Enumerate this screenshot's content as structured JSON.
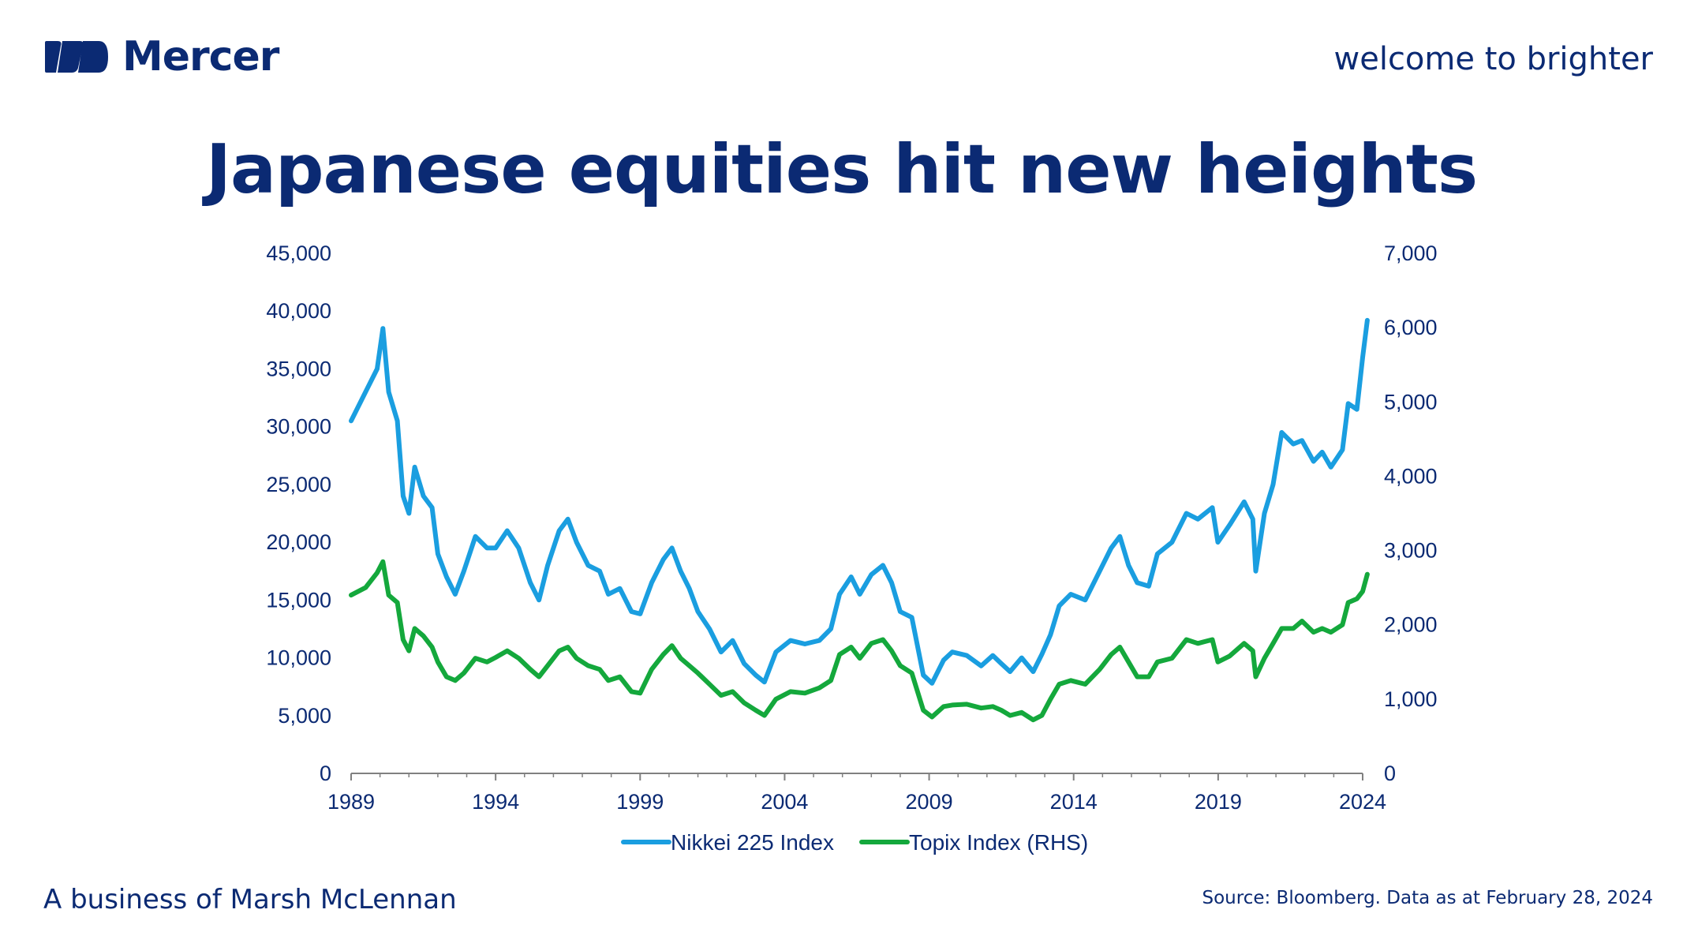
{
  "header": {
    "brand": "Mercer",
    "tagline": "welcome to brighter",
    "logo_icon": "mercer-logo-icon"
  },
  "title": "Japanese equities hit new heights",
  "footer": {
    "left": "A business of Marsh McLennan",
    "right": "Source: Bloomberg. Data as at February 28, 2024"
  },
  "colors": {
    "brand": "#0b2a73",
    "nikkei": "#1a9ee0",
    "topix": "#14a83c",
    "axis": "#808080"
  },
  "chart_data": {
    "type": "line",
    "title": "",
    "xlabel": "",
    "ylabel": "",
    "xlim": [
      1989,
      2024
    ],
    "ylim": [
      0,
      45000
    ],
    "y2lim": [
      0,
      7000
    ],
    "x_ticks": [
      "1989",
      "1994",
      "1999",
      "2004",
      "2009",
      "2014",
      "2019",
      "2024"
    ],
    "y_ticks": [
      "0",
      "5,000",
      "10,000",
      "15,000",
      "20,000",
      "25,000",
      "30,000",
      "35,000",
      "40,000",
      "45,000"
    ],
    "y2_ticks": [
      "0",
      "1,000",
      "2,000",
      "3,000",
      "4,000",
      "5,000",
      "6,000",
      "7,000"
    ],
    "legend_position": "bottom",
    "grid": false,
    "series": [
      {
        "name": "Nikkei 225 Index",
        "axis": "left",
        "x": [
          1989.0,
          1989.5,
          1989.9,
          1990.1,
          1990.3,
          1990.6,
          1990.8,
          1991.0,
          1991.2,
          1991.5,
          1991.8,
          1992.0,
          1992.3,
          1992.6,
          1992.9,
          1993.3,
          1993.7,
          1994.0,
          1994.4,
          1994.8,
          1995.2,
          1995.5,
          1995.8,
          1996.2,
          1996.5,
          1996.8,
          1997.2,
          1997.6,
          1997.9,
          1998.3,
          1998.7,
          1999.0,
          1999.4,
          1999.8,
          2000.1,
          2000.4,
          2000.7,
          2001.0,
          2001.4,
          2001.8,
          2002.2,
          2002.6,
          2003.0,
          2003.3,
          2003.7,
          2004.2,
          2004.7,
          2005.2,
          2005.6,
          2005.9,
          2006.3,
          2006.6,
          2007.0,
          2007.4,
          2007.7,
          2008.0,
          2008.4,
          2008.8,
          2009.1,
          2009.5,
          2009.8,
          2010.3,
          2010.8,
          2011.2,
          2011.5,
          2011.8,
          2012.2,
          2012.6,
          2012.9,
          2013.2,
          2013.5,
          2013.9,
          2014.4,
          2014.9,
          2015.3,
          2015.6,
          2015.9,
          2016.2,
          2016.6,
          2016.9,
          2017.4,
          2017.9,
          2018.3,
          2018.8,
          2018.99,
          2019.4,
          2019.9,
          2020.2,
          2020.3,
          2020.6,
          2020.9,
          2021.2,
          2021.6,
          2021.9,
          2022.3,
          2022.6,
          2022.9,
          2023.3,
          2023.5,
          2023.8,
          2024.0,
          2024.16
        ],
        "values": [
          30500,
          33000,
          35000,
          38500,
          33000,
          30500,
          24000,
          22500,
          26500,
          24000,
          23000,
          19000,
          17000,
          15500,
          17500,
          20500,
          19500,
          19500,
          21000,
          19500,
          16500,
          15000,
          18000,
          21000,
          22000,
          20000,
          18000,
          17500,
          15500,
          16000,
          14000,
          13800,
          16500,
          18500,
          19500,
          17500,
          16000,
          14000,
          12500,
          10500,
          11500,
          9500,
          8500,
          7900,
          10500,
          11500,
          11200,
          11500,
          12500,
          15500,
          17000,
          15500,
          17200,
          18000,
          16500,
          14000,
          13500,
          8500,
          7800,
          9800,
          10500,
          10200,
          9300,
          10200,
          9500,
          8800,
          10000,
          8800,
          10300,
          12000,
          14500,
          15500,
          15000,
          17500,
          19500,
          20500,
          18000,
          16500,
          16200,
          19000,
          20000,
          22500,
          22000,
          23000,
          20000,
          21500,
          23500,
          22000,
          17500,
          22500,
          25000,
          29500,
          28500,
          28800,
          27000,
          27800,
          26500,
          28000,
          32000,
          31500,
          36000,
          39200
        ]
      },
      {
        "name": "Topix Index (RHS)",
        "axis": "right",
        "x": [
          1989.0,
          1989.5,
          1989.9,
          1990.1,
          1990.3,
          1990.6,
          1990.8,
          1991.0,
          1991.2,
          1991.5,
          1991.8,
          1992.0,
          1992.3,
          1992.6,
          1992.9,
          1993.3,
          1993.7,
          1994.0,
          1994.4,
          1994.8,
          1995.2,
          1995.5,
          1995.8,
          1996.2,
          1996.5,
          1996.8,
          1997.2,
          1997.6,
          1997.9,
          1998.3,
          1998.7,
          1999.0,
          1999.4,
          1999.8,
          2000.1,
          2000.4,
          2000.7,
          2001.0,
          2001.4,
          2001.8,
          2002.2,
          2002.6,
          2003.0,
          2003.3,
          2003.7,
          2004.2,
          2004.7,
          2005.2,
          2005.6,
          2005.9,
          2006.3,
          2006.6,
          2007.0,
          2007.4,
          2007.7,
          2008.0,
          2008.4,
          2008.8,
          2009.1,
          2009.5,
          2009.8,
          2010.3,
          2010.8,
          2011.2,
          2011.5,
          2011.8,
          2012.2,
          2012.6,
          2012.9,
          2013.2,
          2013.5,
          2013.9,
          2014.4,
          2014.9,
          2015.3,
          2015.6,
          2015.9,
          2016.2,
          2016.6,
          2016.9,
          2017.4,
          2017.9,
          2018.3,
          2018.8,
          2018.99,
          2019.4,
          2019.9,
          2020.2,
          2020.3,
          2020.6,
          2020.9,
          2021.2,
          2021.6,
          2021.9,
          2022.3,
          2022.6,
          2022.9,
          2023.3,
          2023.5,
          2023.8,
          2024.0,
          2024.16
        ],
        "values": [
          2400,
          2500,
          2700,
          2850,
          2400,
          2300,
          1800,
          1650,
          1950,
          1850,
          1700,
          1500,
          1300,
          1250,
          1350,
          1550,
          1500,
          1560,
          1650,
          1550,
          1400,
          1300,
          1450,
          1650,
          1700,
          1550,
          1450,
          1400,
          1250,
          1300,
          1100,
          1080,
          1400,
          1600,
          1720,
          1550,
          1450,
          1350,
          1200,
          1050,
          1100,
          950,
          850,
          780,
          1000,
          1100,
          1080,
          1150,
          1250,
          1600,
          1700,
          1550,
          1750,
          1800,
          1650,
          1450,
          1350,
          850,
          760,
          900,
          920,
          930,
          880,
          900,
          850,
          780,
          820,
          720,
          780,
          1000,
          1200,
          1250,
          1200,
          1400,
          1600,
          1700,
          1500,
          1300,
          1300,
          1500,
          1550,
          1800,
          1750,
          1800,
          1500,
          1580,
          1750,
          1650,
          1300,
          1550,
          1750,
          1950,
          1950,
          2050,
          1900,
          1950,
          1900,
          2000,
          2300,
          2350,
          2450,
          2680
        ]
      }
    ]
  }
}
